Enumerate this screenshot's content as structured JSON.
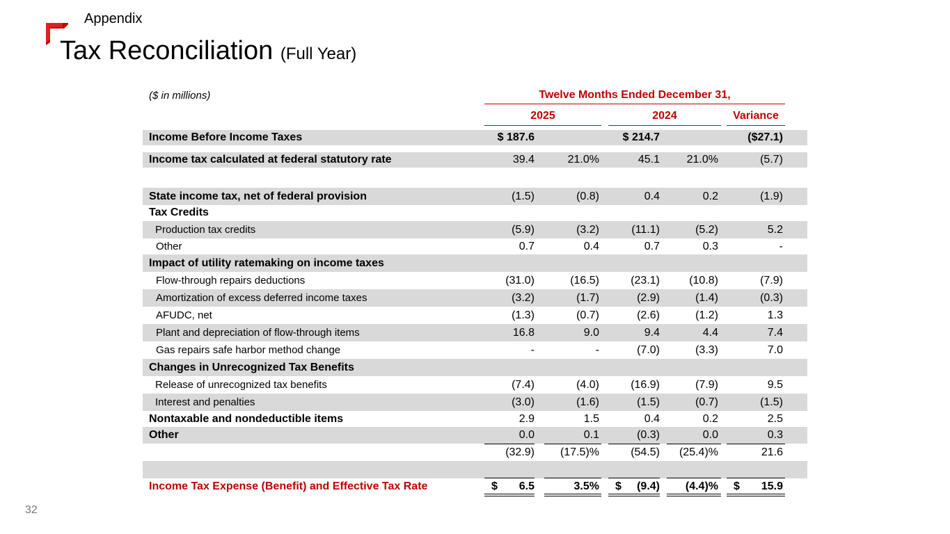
{
  "header": {
    "section": "Appendix",
    "title": "Tax Reconciliation",
    "subtitle": "(Full Year)",
    "page_number": "32",
    "brand_color": "#c00000"
  },
  "table": {
    "units_note": "($ in millions)",
    "period_header": "Twelve Months Ended December 31,",
    "col_2025": "2025",
    "col_2024": "2024",
    "col_variance": "Variance",
    "rows": [
      {
        "label": "Income Before Income Taxes",
        "a": "$ 187.6",
        "ap": "",
        "b": "$ 214.7",
        "bp": "",
        "v": "($27.1)"
      },
      {
        "label": "Income tax calculated at federal statutory rate",
        "a": "39.4",
        "ap": "21.0%",
        "b": "45.1",
        "bp": "21.0%",
        "v": "(5.7)"
      },
      {
        "label": "",
        "a": "",
        "ap": "",
        "b": "",
        "bp": "",
        "v": ""
      },
      {
        "label": "State income tax, net of federal provision",
        "a": "(1.5)",
        "ap": "(0.8)",
        "b": "0.4",
        "bp": "0.2",
        "v": "(1.9)"
      },
      {
        "label": "Tax Credits",
        "a": "",
        "ap": "",
        "b": "",
        "bp": "",
        "v": ""
      },
      {
        "label": "Production tax credits",
        "a": "(5.9)",
        "ap": "(3.2)",
        "b": "(11.1)",
        "bp": "(5.2)",
        "v": "5.2"
      },
      {
        "label": "Other",
        "a": "0.7",
        "ap": "0.4",
        "b": "0.7",
        "bp": "0.3",
        "v": "-"
      },
      {
        "label": "Impact of utility ratemaking on income taxes",
        "a": "",
        "ap": "",
        "b": "",
        "bp": "",
        "v": ""
      },
      {
        "label": "Flow-through repairs deductions",
        "a": "(31.0)",
        "ap": "(16.5)",
        "b": "(23.1)",
        "bp": "(10.8)",
        "v": "(7.9)"
      },
      {
        "label": "Amortization of excess deferred income taxes",
        "a": "(3.2)",
        "ap": "(1.7)",
        "b": "(2.9)",
        "bp": "(1.4)",
        "v": "(0.3)"
      },
      {
        "label": "AFUDC, net",
        "a": "(1.3)",
        "ap": "(0.7)",
        "b": "(2.6)",
        "bp": "(1.2)",
        "v": "1.3"
      },
      {
        "label": "Plant and depreciation of flow-through items",
        "a": "16.8",
        "ap": "9.0",
        "b": "9.4",
        "bp": "4.4",
        "v": "7.4"
      },
      {
        "label": "Gas repairs safe harbor method change",
        "a": "-",
        "ap": "-",
        "b": "(7.0)",
        "bp": "(3.3)",
        "v": "7.0"
      },
      {
        "label": "Changes in Unrecognized Tax Benefits",
        "a": "",
        "ap": "",
        "b": "",
        "bp": "",
        "v": ""
      },
      {
        "label": "Release of unrecognized tax benefits",
        "a": "(7.4)",
        "ap": "(4.0)",
        "b": "(16.9)",
        "bp": "(7.9)",
        "v": "9.5"
      },
      {
        "label": "Interest and penalties",
        "a": "(3.0)",
        "ap": "(1.6)",
        "b": "(1.5)",
        "bp": "(0.7)",
        "v": "(1.5)"
      },
      {
        "label": "Nontaxable and nondeductible items",
        "a": "2.9",
        "ap": "1.5",
        "b": "0.4",
        "bp": "0.2",
        "v": "2.5"
      },
      {
        "label": "Other",
        "a": "0.0",
        "ap": "0.1",
        "b": "(0.3)",
        "bp": "0.0",
        "v": "0.3"
      },
      {
        "label": "",
        "a": "(32.9)",
        "ap": "(17.5)%",
        "b": "(54.5)",
        "bp": "(25.4)%",
        "v": "21.6"
      },
      {
        "label": "",
        "a": "",
        "ap": "",
        "b": "",
        "bp": "",
        "v": ""
      },
      {
        "label": "Income Tax Expense (Benefit) and Effective Tax Rate",
        "a": "6.5",
        "ap": "3.5%",
        "b": "(9.4)",
        "bp": "(4.4)%",
        "v": "15.9"
      }
    ],
    "total_currency_symbol": "$"
  }
}
